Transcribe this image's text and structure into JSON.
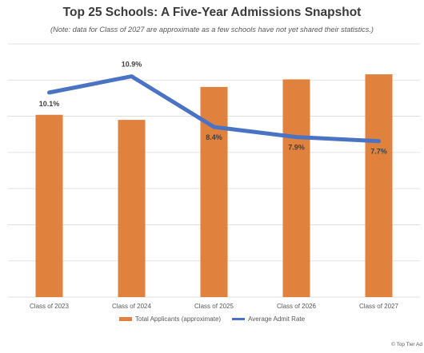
{
  "chart_data": {
    "type": "bar",
    "title": "Top 25 Schools: A Five-Year Admissions Snapshot",
    "subtitle": "(Note: data for Class of 2027 are approximate as a few schools have not yet shared their statistics.)",
    "categories": [
      "Class of 2023",
      "Class of 2024",
      "Class of 2025",
      "Class of 2026",
      "Class of 2027"
    ],
    "series": [
      {
        "name": "Total Applicants (approximate)",
        "type": "bar",
        "color": "#e0823e",
        "values": [
          0.72,
          0.7,
          0.83,
          0.86,
          0.88
        ]
      },
      {
        "name": "Average Admit Rate",
        "type": "line",
        "color": "#4a73c4",
        "values": [
          10.1,
          10.9,
          8.4,
          7.9,
          7.7
        ],
        "labels": [
          "10.1%",
          "10.9%",
          "8.4%",
          "7.9%",
          "7.7%"
        ]
      }
    ],
    "ylim": [
      0,
      1
    ],
    "secondary_ylim": [
      0,
      12.5
    ],
    "grid": true,
    "legend_position": "bottom"
  },
  "footer": {
    "credit": "© Top Tier Ad"
  }
}
